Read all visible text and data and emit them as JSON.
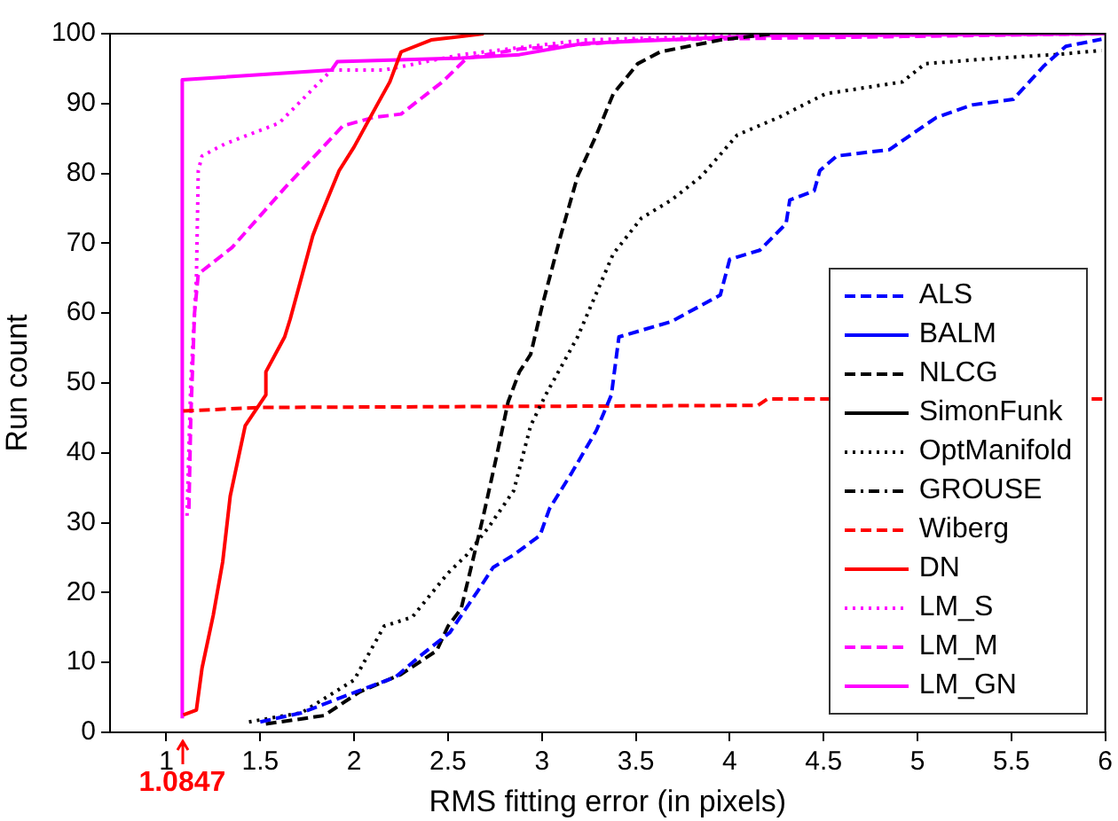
{
  "chart_data": {
    "type": "line",
    "xlabel": "RMS fitting error (in pixels)",
    "ylabel": "Run count",
    "xlim": [
      0.7,
      6
    ],
    "xticks": [
      1,
      1.5,
      2,
      2.5,
      3,
      3.5,
      4,
      4.5,
      5,
      5.5,
      6
    ],
    "ylim": [
      0,
      100
    ],
    "yticks": [
      0,
      10,
      20,
      30,
      40,
      50,
      60,
      70,
      80,
      90,
      100
    ],
    "grid": false,
    "legend": "bottom right",
    "marker": "none",
    "annotations": [
      {
        "text": "1.0847",
        "x": 1.0847,
        "y": 2
      }
    ],
    "series": [
      {
        "name": "ALS",
        "color": "#0000ff",
        "line_style": "dashed",
        "x": [
          1.5,
          1.72,
          2.01,
          2.22,
          2.35,
          2.51,
          2.66,
          2.74,
          2.85,
          2.99,
          3.04,
          3.16,
          3.29,
          3.37,
          3.41,
          3.69,
          3.95,
          4.0,
          4.16,
          4.3,
          4.32,
          4.45,
          4.48,
          4.57,
          4.85,
          5.1,
          5.29,
          5.51,
          5.67,
          5.79,
          5.98
        ],
        "values": [
          1.5,
          2.8,
          5.8,
          7.9,
          10.9,
          14.3,
          20.3,
          23.6,
          25.4,
          28.2,
          32,
          37.2,
          43.2,
          48.3,
          56.6,
          58.8,
          62.6,
          67.7,
          69,
          72.8,
          76.2,
          77.5,
          80.4,
          82.5,
          83.4,
          88,
          89.8,
          90.6,
          95.3,
          98.2,
          99.2
        ]
      },
      {
        "name": "BALM",
        "color": "#0000ff",
        "line_style": "solid",
        "values": [
          null
        ]
      },
      {
        "name": "NLCG",
        "color": "#000000",
        "line_style": "dashed",
        "x": [
          1.53,
          1.84,
          2.03,
          2.25,
          2.44,
          2.5,
          2.57,
          2.63,
          2.69,
          2.76,
          2.82,
          2.88,
          2.94,
          3.0,
          3.1,
          3.19,
          3.29,
          3.38,
          3.51,
          3.63,
          3.95,
          4.23
        ],
        "values": [
          1.2,
          2.4,
          5.8,
          8.3,
          11.7,
          15.2,
          17.7,
          24.4,
          31.2,
          39.7,
          47.3,
          51.6,
          54.1,
          60.9,
          71.1,
          79.6,
          85.5,
          91.4,
          95.7,
          97.4,
          99.1,
          100
        ]
      },
      {
        "name": "SimonFunk",
        "color": "#000000",
        "line_style": "solid",
        "values": [
          null
        ]
      },
      {
        "name": "OptManifold",
        "color": "#000000",
        "line_style": "dotted",
        "x": [
          1.44,
          1.72,
          2.0,
          2.16,
          2.31,
          2.5,
          2.6,
          2.72,
          2.85,
          2.94,
          3.02,
          3.19,
          3.38,
          3.53,
          3.69,
          3.85,
          4.04,
          4.26,
          4.51,
          4.92,
          5.04,
          5.42,
          5.73,
          5.98
        ],
        "values": [
          1.5,
          2.8,
          7.5,
          15.2,
          16.5,
          22.8,
          25.4,
          29.5,
          34.6,
          43.9,
          48.3,
          56.6,
          68.5,
          73.6,
          76.2,
          79.6,
          85.5,
          88,
          91.4,
          93.1,
          95.7,
          96.5,
          97,
          97.6
        ]
      },
      {
        "name": "GROUSE",
        "color": "#000000",
        "line_style": "dashdot",
        "values": [
          null
        ]
      },
      {
        "name": "Wiberg",
        "color": "#ff0000",
        "line_style": "dashed",
        "x": [
          1.09,
          1.5,
          4.15,
          4.2,
          6
        ],
        "values": [
          46,
          46.5,
          46.8,
          47.7,
          47.7
        ]
      },
      {
        "name": "DN",
        "color": "#ff0000",
        "line_style": "solid",
        "x": [
          1.09,
          1.16,
          1.19,
          1.25,
          1.3,
          1.34,
          1.42,
          1.53,
          1.53,
          1.63,
          1.66,
          1.78,
          1.81,
          1.92,
          2.0,
          2.12,
          2.19,
          2.25,
          2.41,
          2.69
        ],
        "values": [
          2.5,
          3.2,
          9.2,
          16.8,
          24.4,
          33.8,
          43.9,
          48.3,
          51.6,
          56.6,
          59.2,
          71.1,
          73.2,
          80.4,
          83.8,
          89.7,
          93.1,
          97.4,
          99.1,
          100
        ]
      },
      {
        "name": "LM_S",
        "color": "#ff00ff",
        "line_style": "dotted",
        "x": [
          1.11,
          1.13,
          1.16,
          1.17,
          1.19,
          1.31,
          1.6,
          1.88,
          2.16,
          2.57,
          3.22,
          4.0,
          6
        ],
        "values": [
          31,
          50,
          65,
          80.4,
          82.5,
          84.2,
          87.2,
          94.8,
          94.8,
          97,
          99.1,
          99.7,
          100
        ]
      },
      {
        "name": "LM_M",
        "color": "#ff00ff",
        "line_style": "dashed",
        "x": [
          1.12,
          1.13,
          1.15,
          1.17,
          1.35,
          1.63,
          1.94,
          2.1,
          2.25,
          2.47,
          2.6,
          2.88,
          3.53,
          6
        ],
        "values": [
          32,
          45,
          60,
          65.6,
          69.4,
          77.9,
          86.8,
          88,
          88.5,
          93.1,
          96.5,
          97.8,
          99.1,
          100
        ]
      },
      {
        "name": "LM_GN",
        "color": "#ff00ff",
        "line_style": "solid",
        "x": [
          1.0847,
          1.0847,
          1.88,
          1.91,
          2.57,
          2.88,
          3.22,
          4.16,
          6
        ],
        "values": [
          2,
          93.4,
          94.8,
          96,
          96.5,
          97,
          98.6,
          99.7,
          100
        ]
      }
    ]
  }
}
